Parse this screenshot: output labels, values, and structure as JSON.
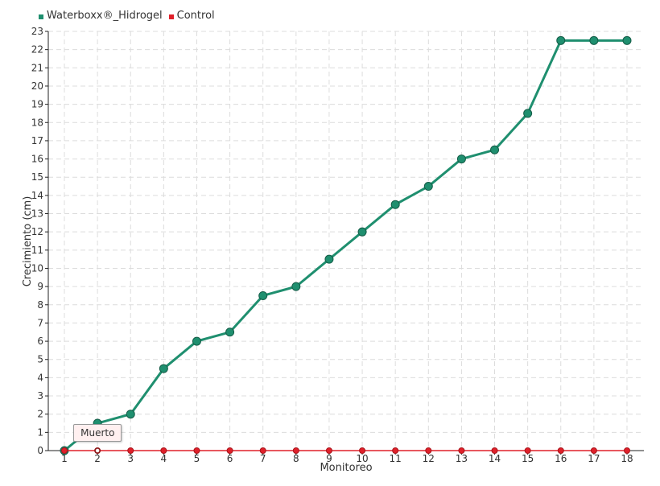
{
  "legend": {
    "series1_label": "Waterboxx®_Hidrogel",
    "series2_label": "Control"
  },
  "tooltip": {
    "text": "Muerto",
    "series_index": 1,
    "point_index": 1
  },
  "colors": {
    "series1": "#1f8f6f",
    "series2": "#e0202a",
    "grid": "#dcdcdc",
    "axis": "#222222"
  },
  "chart_data": {
    "type": "line",
    "title": "",
    "xlabel": "Monitoreo",
    "ylabel": "Crecimiento (cm)",
    "x": [
      1,
      2,
      3,
      4,
      5,
      6,
      7,
      8,
      9,
      10,
      11,
      12,
      13,
      14,
      15,
      16,
      17,
      18
    ],
    "ylim": [
      0,
      23
    ],
    "yticks": [
      0,
      1,
      2,
      3,
      4,
      5,
      6,
      7,
      8,
      9,
      10,
      11,
      12,
      13,
      14,
      15,
      16,
      17,
      18,
      19,
      20,
      21,
      22,
      23
    ],
    "grid": true,
    "legend_position": "top-left",
    "series": [
      {
        "name": "Waterboxx®_Hidrogel",
        "values": [
          0,
          1.5,
          2,
          4.5,
          6,
          6.5,
          8.5,
          9,
          10.5,
          12,
          13.5,
          14.5,
          16,
          16.5,
          18.5,
          22.5,
          22.5,
          22.5
        ]
      },
      {
        "name": "Control",
        "values": [
          0,
          0,
          0,
          0,
          0,
          0,
          0,
          0,
          0,
          0,
          0,
          0,
          0,
          0,
          0,
          0,
          0,
          0
        ]
      }
    ]
  }
}
